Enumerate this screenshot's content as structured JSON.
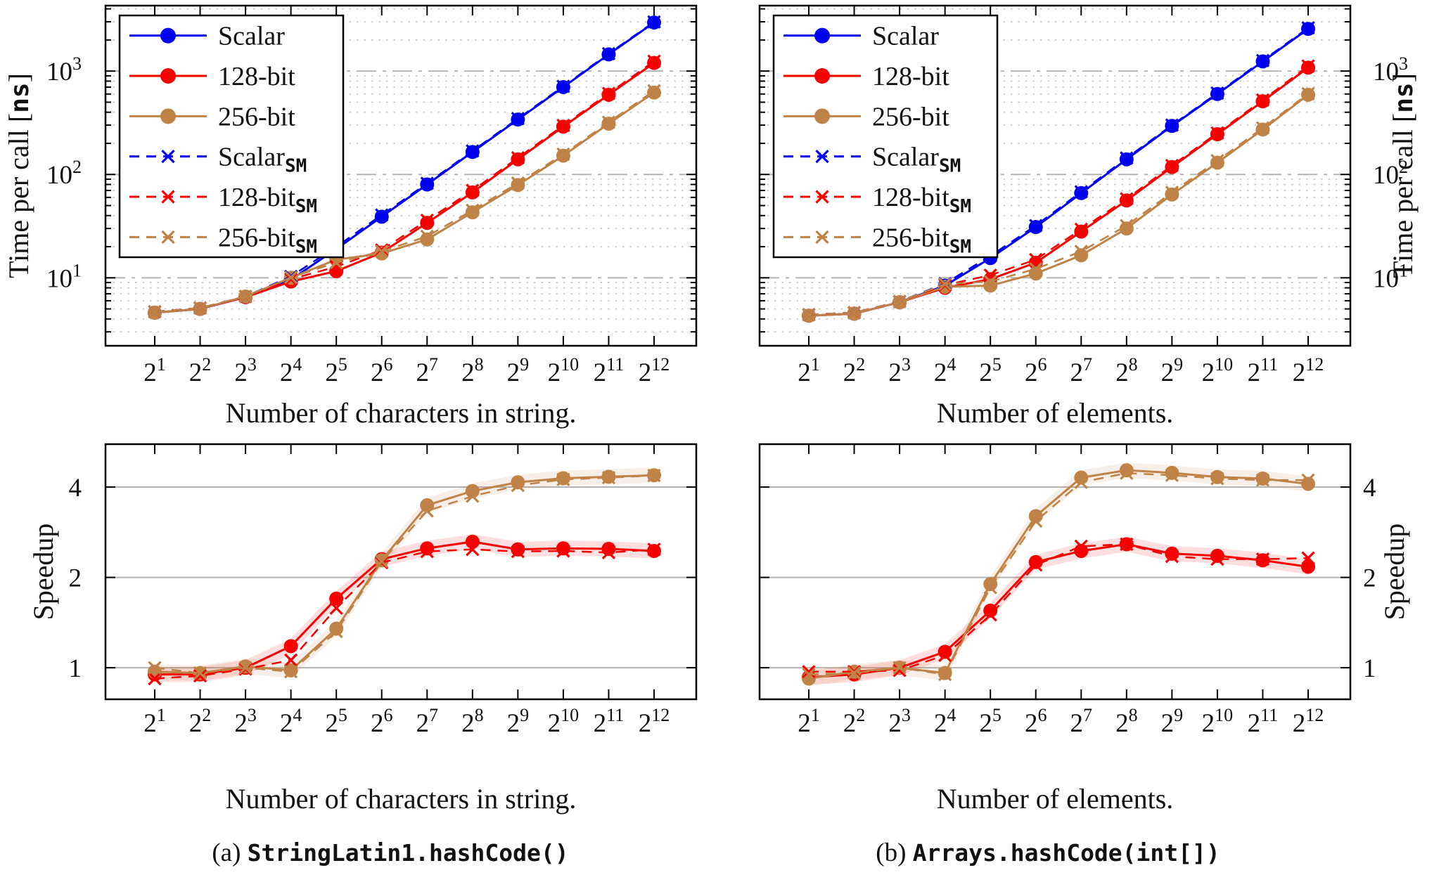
{
  "figure": {
    "background": "#ffffff",
    "captions": [
      {
        "prefix": "(a)",
        "code": "StringLatin1.hashCode()"
      },
      {
        "prefix": "(b)",
        "code": "Arrays.hashCode(int[])"
      }
    ]
  },
  "colors": {
    "scalar": "#0000f0",
    "bit128": "#f60000",
    "bit256": "#bf8347",
    "grid_major": "#b3b3b3",
    "grid_minor": "#c9c9c9",
    "axis": "#000000",
    "legend_background": "#ffffff"
  },
  "legend": {
    "entries": [
      {
        "label": "Scalar",
        "subscript": "",
        "color_key": "scalar",
        "dashed": false,
        "marker": "circle"
      },
      {
        "label": "128-bit",
        "subscript": "",
        "color_key": "bit128",
        "dashed": false,
        "marker": "circle"
      },
      {
        "label": "256-bit",
        "subscript": "",
        "color_key": "bit256",
        "dashed": false,
        "marker": "circle"
      },
      {
        "label": "Scalar",
        "subscript": "SM",
        "color_key": "scalar",
        "dashed": true,
        "marker": "x"
      },
      {
        "label": "128-bit",
        "subscript": "SM",
        "color_key": "bit128",
        "dashed": true,
        "marker": "x"
      },
      {
        "label": "256-bit",
        "subscript": "SM",
        "color_key": "bit256",
        "dashed": true,
        "marker": "x"
      }
    ]
  },
  "chart_data": [
    {
      "id": "time_string",
      "type": "line",
      "y_scale": "log10",
      "x_base": 2,
      "x_exponents": [
        1,
        2,
        3,
        4,
        5,
        6,
        7,
        8,
        9,
        10,
        11,
        12
      ],
      "xlabel": "Number of characters in string.",
      "ylabel_parts": [
        {
          "t": "Time per call [",
          "mono": false
        },
        {
          "t": "ns",
          "mono": true
        },
        {
          "t": "]",
          "mono": false
        }
      ],
      "ylabel_side": "left",
      "y_tick_exponents": [
        1,
        2,
        3
      ],
      "y_tick_base": 10,
      "ylim": [
        2.2,
        4300
      ],
      "grid": "log-dotted",
      "legend": true,
      "series": [
        {
          "name": "Scalar",
          "color_key": "scalar",
          "style": "solid",
          "marker": "circle",
          "band": false,
          "values": [
            4.6,
            5.0,
            6.5,
            9.6,
            19,
            39,
            80,
            165,
            340,
            700,
            1450,
            2950
          ]
        },
        {
          "name": "128-bit",
          "color_key": "bit128",
          "style": "solid",
          "marker": "circle",
          "band": false,
          "values": [
            4.6,
            5.0,
            6.5,
            9.2,
            11.6,
            17.5,
            34,
            67,
            140,
            290,
            590,
            1200
          ]
        },
        {
          "name": "256-bit",
          "color_key": "bit256",
          "style": "solid",
          "marker": "circle",
          "band": false,
          "values": [
            4.6,
            5.0,
            6.6,
            10.0,
            15.0,
            17.2,
            23.5,
            43,
            79,
            152,
            310,
            620
          ]
        },
        {
          "name": "Scalar-SM",
          "color_key": "scalar",
          "style": "dashed",
          "marker": "x",
          "band": false,
          "values": [
            4.7,
            5.1,
            6.6,
            10.3,
            20.0,
            40.5,
            82,
            169,
            347,
            712,
            1475,
            2990
          ]
        },
        {
          "name": "128-bit-SM",
          "color_key": "bit128",
          "style": "dashed",
          "marker": "x",
          "band": false,
          "values": [
            4.7,
            5.1,
            6.6,
            9.7,
            12.8,
            18.6,
            36,
            70,
            145,
            298,
            608,
            1245
          ]
        },
        {
          "name": "256-bit-SM",
          "color_key": "bit256",
          "style": "dashed",
          "marker": "x",
          "band": false,
          "values": [
            4.7,
            5.1,
            6.6,
            10.1,
            14.0,
            18.0,
            25.2,
            45,
            82.5,
            157,
            320,
            645
          ]
        }
      ]
    },
    {
      "id": "time_elements",
      "type": "line",
      "y_scale": "log10",
      "x_base": 2,
      "x_exponents": [
        1,
        2,
        3,
        4,
        5,
        6,
        7,
        8,
        9,
        10,
        11,
        12
      ],
      "xlabel": "Number of elements.",
      "ylabel_parts": [
        {
          "t": "Time per call [",
          "mono": false
        },
        {
          "t": "ns",
          "mono": true
        },
        {
          "t": "]",
          "mono": false
        }
      ],
      "ylabel_side": "right",
      "y_tick_exponents": [
        1,
        2,
        3
      ],
      "y_tick_base": 10,
      "ylim": [
        2.2,
        4300
      ],
      "grid": "log-dotted",
      "legend": true,
      "series": [
        {
          "name": "Scalar",
          "color_key": "scalar",
          "style": "solid",
          "marker": "circle",
          "band": false,
          "values": [
            4.3,
            4.5,
            5.8,
            8.4,
            15.5,
            31,
            66,
            140,
            295,
            600,
            1240,
            2560
          ]
        },
        {
          "name": "128-bit",
          "color_key": "bit128",
          "style": "solid",
          "marker": "circle",
          "band": false,
          "values": [
            4.3,
            4.5,
            5.8,
            8.0,
            9.7,
            14.0,
            28,
            56,
            118,
            245,
            510,
            1080
          ]
        },
        {
          "name": "256-bit",
          "color_key": "bit256",
          "style": "solid",
          "marker": "circle",
          "band": false,
          "values": [
            4.3,
            4.5,
            5.8,
            8.2,
            8.4,
            11.0,
            16.5,
            30,
            64,
            130,
            272,
            590
          ]
        },
        {
          "name": "Scalar-SM",
          "color_key": "scalar",
          "style": "dashed",
          "marker": "x",
          "band": false,
          "values": [
            4.4,
            4.6,
            5.9,
            8.8,
            16.3,
            32,
            68,
            144,
            300,
            612,
            1265,
            2620
          ]
        },
        {
          "name": "128-bit-SM",
          "color_key": "bit128",
          "style": "dashed",
          "marker": "x",
          "band": false,
          "values": [
            4.4,
            4.6,
            5.9,
            8.5,
            10.6,
            15.0,
            29.5,
            58,
            122,
            252,
            525,
            1120
          ]
        },
        {
          "name": "256-bit-SM",
          "color_key": "bit256",
          "style": "dashed",
          "marker": "x",
          "band": false,
          "values": [
            4.4,
            4.6,
            5.9,
            8.7,
            9.2,
            12.2,
            18.0,
            32,
            67,
            136,
            282,
            605
          ]
        }
      ]
    },
    {
      "id": "speedup_string",
      "type": "line",
      "y_scale": "log2",
      "x_base": 2,
      "x_exponents": [
        1,
        2,
        3,
        4,
        5,
        6,
        7,
        8,
        9,
        10,
        11,
        12
      ],
      "xlabel": "Number of characters in string.",
      "ylabel_parts": [
        {
          "t": "Speedup",
          "mono": false
        }
      ],
      "ylabel_side": "left",
      "y_ticks": [
        1,
        2,
        4
      ],
      "ylim": [
        0.785,
        5.56
      ],
      "grid": "solid-major",
      "legend": false,
      "series": [
        {
          "name": "128-bit",
          "color_key": "bit128",
          "style": "solid",
          "marker": "circle",
          "band": true,
          "values": [
            0.95,
            0.95,
            1.0,
            1.18,
            1.7,
            2.3,
            2.5,
            2.63,
            2.48,
            2.5,
            2.49,
            2.45
          ]
        },
        {
          "name": "256-bit",
          "color_key": "bit256",
          "style": "solid",
          "marker": "circle",
          "band": true,
          "values": [
            0.97,
            0.96,
            1.01,
            0.98,
            1.35,
            2.28,
            3.48,
            3.88,
            4.15,
            4.28,
            4.33,
            4.38
          ]
        },
        {
          "name": "128-bit-SM",
          "color_key": "bit128",
          "style": "dashed",
          "marker": "x",
          "band": false,
          "values": [
            0.92,
            0.94,
            0.99,
            1.06,
            1.58,
            2.24,
            2.44,
            2.48,
            2.44,
            2.45,
            2.42,
            2.48
          ]
        },
        {
          "name": "256-bit-SM",
          "color_key": "bit256",
          "style": "dashed",
          "marker": "x",
          "band": false,
          "values": [
            1.0,
            0.96,
            1.0,
            0.97,
            1.32,
            2.26,
            3.33,
            3.73,
            4.05,
            4.24,
            4.3,
            4.37
          ]
        }
      ]
    },
    {
      "id": "speedup_elements",
      "type": "line",
      "y_scale": "log2",
      "x_base": 2,
      "x_exponents": [
        1,
        2,
        3,
        4,
        5,
        6,
        7,
        8,
        9,
        10,
        11,
        12
      ],
      "xlabel": "Number of elements.",
      "ylabel_parts": [
        {
          "t": "Speedup",
          "mono": false
        }
      ],
      "ylabel_side": "right",
      "y_ticks": [
        1,
        2,
        4
      ],
      "ylim": [
        0.785,
        5.56
      ],
      "grid": "solid-major",
      "legend": false,
      "series": [
        {
          "name": "128-bit",
          "color_key": "bit128",
          "style": "solid",
          "marker": "circle",
          "band": true,
          "values": [
            0.93,
            0.95,
            1.0,
            1.13,
            1.55,
            2.25,
            2.45,
            2.58,
            2.4,
            2.36,
            2.28,
            2.17
          ]
        },
        {
          "name": "256-bit",
          "color_key": "bit256",
          "style": "solid",
          "marker": "circle",
          "band": true,
          "values": [
            0.92,
            0.97,
            1.0,
            0.96,
            1.9,
            3.2,
            4.3,
            4.55,
            4.46,
            4.32,
            4.27,
            4.1
          ]
        },
        {
          "name": "128-bit-SM",
          "color_key": "bit128",
          "style": "dashed",
          "marker": "x",
          "band": false,
          "values": [
            0.97,
            0.97,
            0.98,
            1.1,
            1.5,
            2.2,
            2.54,
            2.58,
            2.35,
            2.3,
            2.3,
            2.32
          ]
        },
        {
          "name": "256-bit-SM",
          "color_key": "bit256",
          "style": "dashed",
          "marker": "x",
          "band": false,
          "values": [
            0.95,
            0.96,
            1.0,
            0.95,
            1.85,
            3.08,
            4.15,
            4.45,
            4.38,
            4.27,
            4.22,
            4.22
          ]
        }
      ]
    }
  ]
}
